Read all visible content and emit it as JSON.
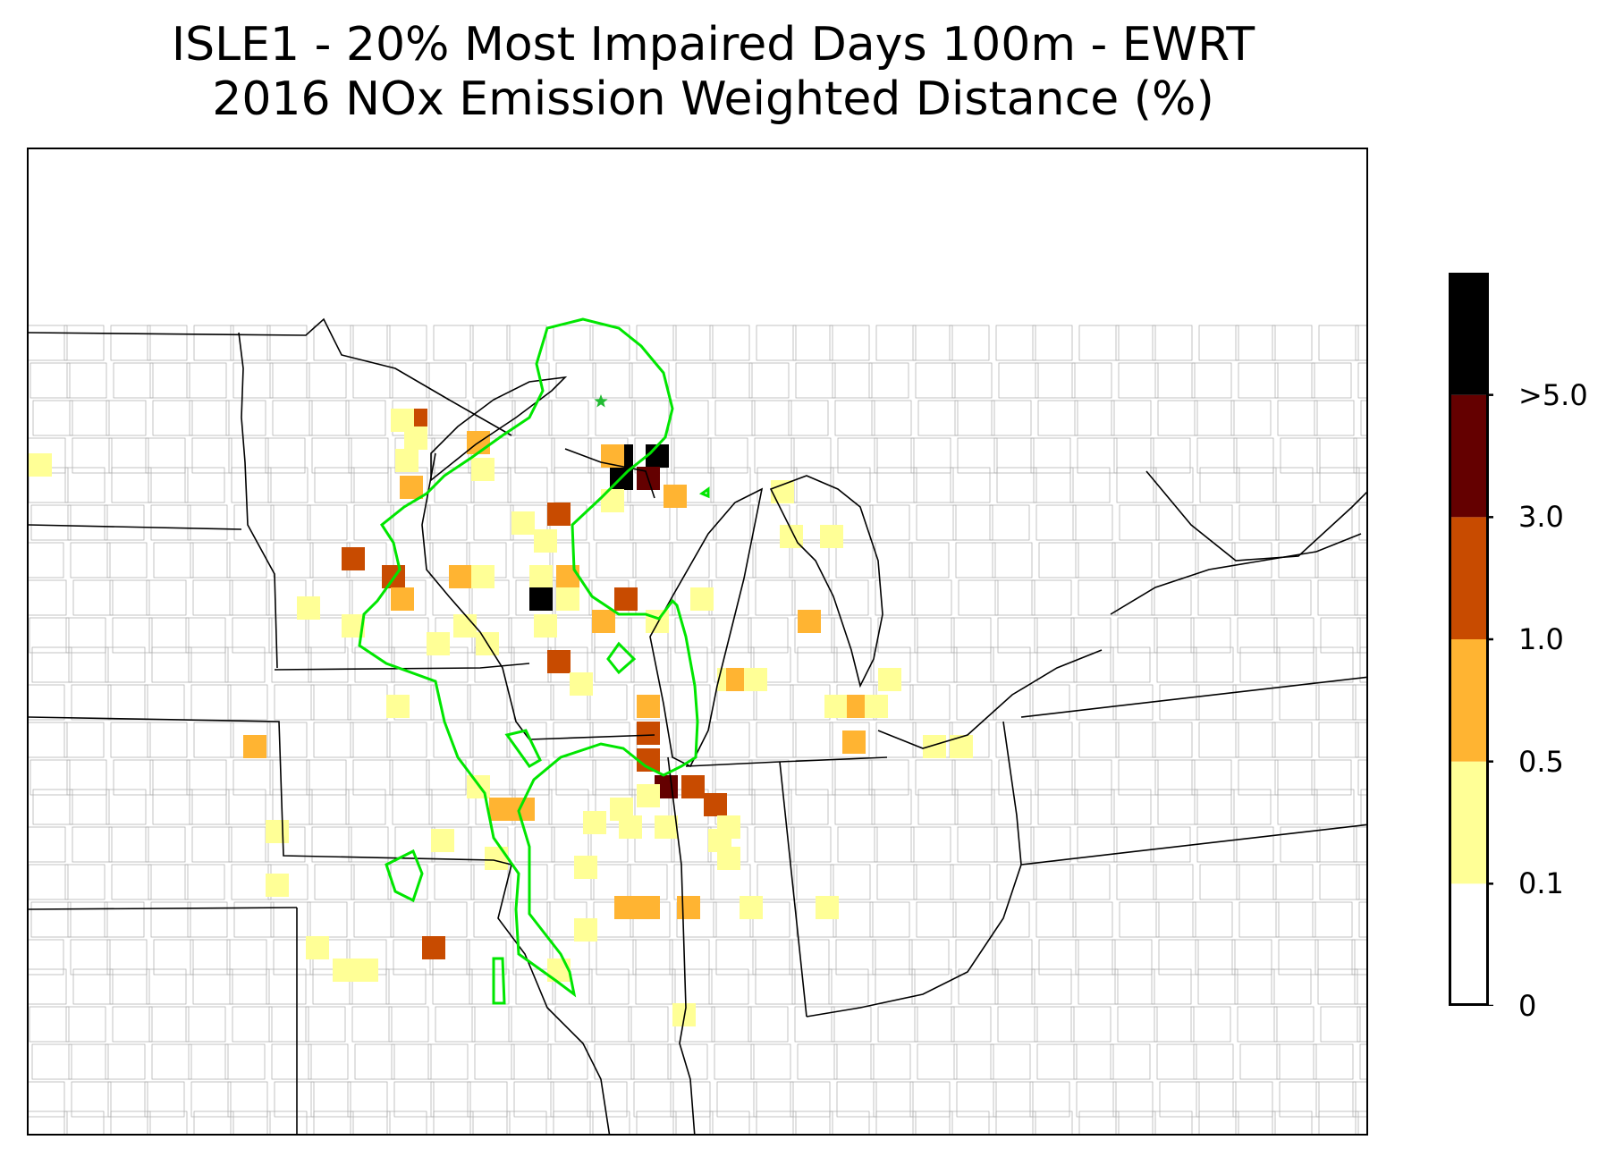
{
  "title": {
    "line1": "ISLE1 - 20% Most Impaired Days 100m - EWRT",
    "line2": "2016 NOx Emission Weighted Distance (%)"
  },
  "legend": {
    "bins": [
      {
        "range": [
          0,
          0.1
        ],
        "color": "#ffffff"
      },
      {
        "range": [
          0.1,
          0.5
        ],
        "color": "#ffff96"
      },
      {
        "range": [
          0.5,
          1.0
        ],
        "color": "#ffb432"
      },
      {
        "range": [
          1.0,
          3.0
        ],
        "color": "#c84b00"
      },
      {
        "range": [
          3.0,
          5.0
        ],
        "color": "#640000"
      },
      {
        "range": [
          5.0,
          null
        ],
        "color": "#000000"
      }
    ],
    "tick_labels": [
      "0",
      "0.1",
      "0.5",
      "1.0",
      "3.0",
      ">5.0"
    ]
  },
  "map": {
    "contour_color": "#00e600",
    "marker_color": "#22bb33",
    "marker": "star-icon"
  },
  "colors": {
    "state_border": "#000000",
    "county_border": "#aaaaaa"
  }
}
